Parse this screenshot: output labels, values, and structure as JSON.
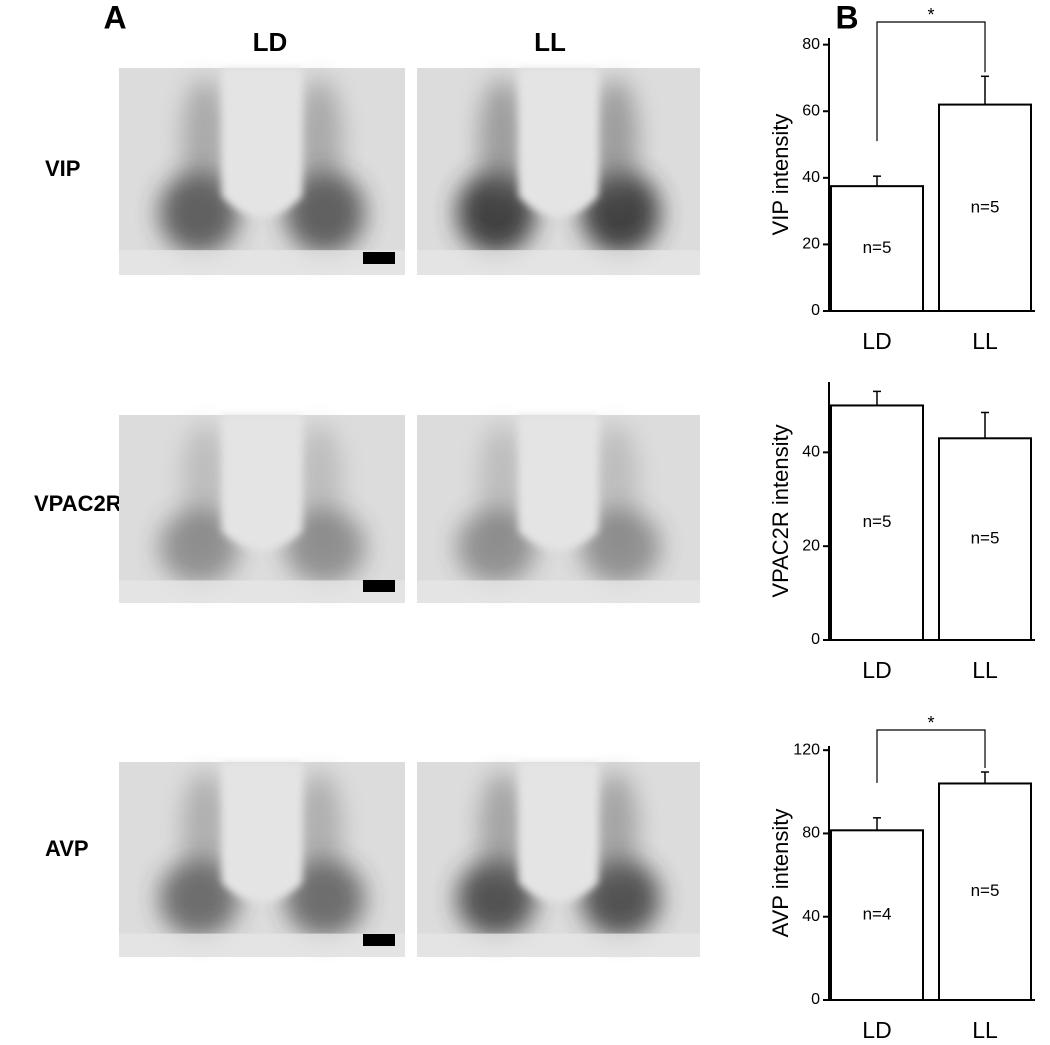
{
  "panels": {
    "a_label": "A",
    "b_label": "B",
    "columns": [
      "LD",
      "LL"
    ],
    "rows": [
      "VIP",
      "VPAC2R",
      "AVP"
    ]
  },
  "chart_data": [
    {
      "type": "bar",
      "y_label": "VIP intensity",
      "categories": [
        "LD",
        "LL"
      ],
      "values": [
        37.5,
        62
      ],
      "errors": [
        3,
        8.5
      ],
      "annotations": [
        "n=5",
        "n=5"
      ],
      "significance": "*",
      "color": "#ffffff",
      "ylim": [
        0,
        82
      ],
      "yticks": [
        0,
        20,
        40,
        60,
        80
      ]
    },
    {
      "type": "bar",
      "y_label": "VPAC2R  intensity",
      "categories": [
        "LD",
        "LL"
      ],
      "values": [
        50,
        43
      ],
      "errors": [
        3,
        5.5
      ],
      "annotations": [
        "n=5",
        "n=5"
      ],
      "color": "#ffffff",
      "ylim": [
        0,
        55
      ],
      "yticks": [
        0,
        20,
        40
      ]
    },
    {
      "type": "bar",
      "y_label": "AVP intensity",
      "categories": [
        "LD",
        "LL"
      ],
      "values": [
        81.5,
        104
      ],
      "errors": [
        6,
        5.5
      ],
      "annotations": [
        "n=4",
        "n=5"
      ],
      "significance": "*",
      "color": "#ffffff",
      "ylim": [
        0,
        122
      ],
      "yticks": [
        0,
        40,
        80,
        120
      ]
    }
  ]
}
